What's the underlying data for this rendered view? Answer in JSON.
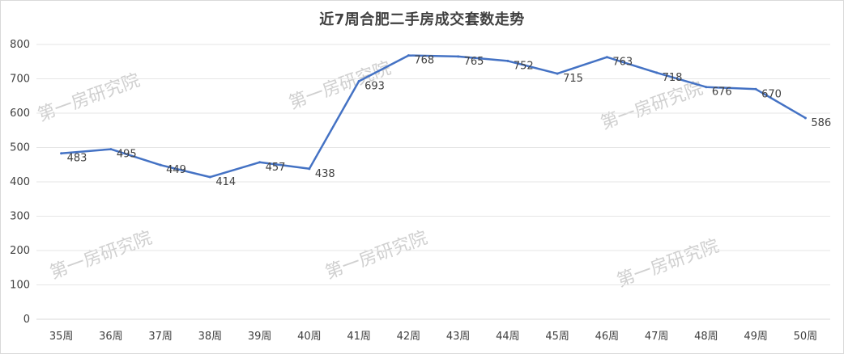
{
  "chart_data": {
    "type": "line",
    "title": "近7周合肥二手房成交套数走势",
    "categories": [
      "35周",
      "36周",
      "37周",
      "38周",
      "39周",
      "40周",
      "41周",
      "42周",
      "43周",
      "44周",
      "45周",
      "46周",
      "47周",
      "48周",
      "49周",
      "50周"
    ],
    "series": [
      {
        "values": [
          483,
          495,
          449,
          414,
          457,
          438,
          693,
          768,
          765,
          752,
          715,
          763,
          718,
          676,
          670,
          586
        ],
        "color": "#4472c4"
      }
    ],
    "ylim": [
      0,
      800
    ],
    "yticks": [
      0,
      100,
      200,
      300,
      400,
      500,
      600,
      700,
      800
    ],
    "grid": true,
    "legend": "none",
    "watermark": "第一房研究院"
  }
}
